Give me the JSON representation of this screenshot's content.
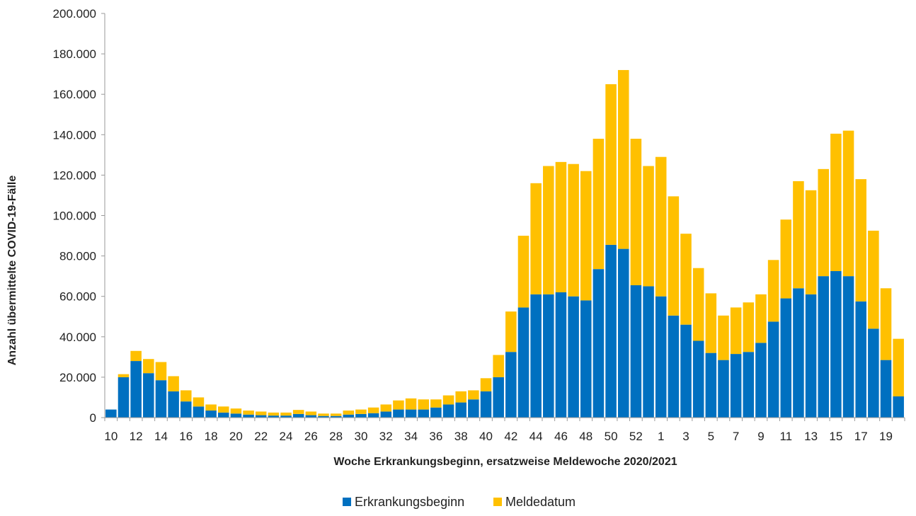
{
  "chart_data": {
    "type": "bar",
    "stacked": true,
    "xlabel": "Woche Erkrankungsbeginn, ersatzweise Meldewoche 2020/2021",
    "ylabel": "Anzahl übermittelte COVID-19-Fälle",
    "ylim": [
      0,
      200000
    ],
    "yticks": [
      "0",
      "20.000",
      "40.000",
      "60.000",
      "80.000",
      "100.000",
      "120.000",
      "140.000",
      "160.000",
      "180.000",
      "200.000"
    ],
    "categories": [
      "10",
      "11",
      "12",
      "13",
      "14",
      "15",
      "16",
      "17",
      "18",
      "19",
      "20",
      "21",
      "22",
      "23",
      "24",
      "25",
      "26",
      "27",
      "28",
      "29",
      "30",
      "31",
      "32",
      "33",
      "34",
      "35",
      "36",
      "37",
      "38",
      "39",
      "40",
      "41",
      "42",
      "43",
      "44",
      "45",
      "46",
      "47",
      "48",
      "49",
      "50",
      "51",
      "52",
      "53",
      "1",
      "2",
      "3",
      "4",
      "5",
      "6",
      "7",
      "8",
      "9",
      "10",
      "11",
      "12",
      "13",
      "14",
      "15",
      "16",
      "17",
      "18",
      "19",
      "20"
    ],
    "tick_labels": [
      "10",
      "12",
      "14",
      "16",
      "18",
      "20",
      "22",
      "24",
      "26",
      "28",
      "30",
      "32",
      "34",
      "36",
      "38",
      "40",
      "42",
      "44",
      "46",
      "48",
      "50",
      "52",
      "1",
      "3",
      "5",
      "7",
      "9",
      "11",
      "13",
      "15",
      "17",
      "19"
    ],
    "tick_indices": [
      0,
      2,
      4,
      6,
      8,
      10,
      12,
      14,
      16,
      18,
      20,
      22,
      24,
      26,
      28,
      30,
      32,
      34,
      36,
      38,
      40,
      42,
      44,
      46,
      48,
      50,
      52,
      54,
      56,
      58,
      60,
      62
    ],
    "series": [
      {
        "name": "Erkrankungsbeginn",
        "color": "#0070C0",
        "values": [
          4000,
          20000,
          28000,
          22000,
          18500,
          13000,
          8000,
          5500,
          3500,
          2500,
          2000,
          1500,
          1200,
          1000,
          1000,
          1800,
          1200,
          800,
          800,
          1500,
          1800,
          2200,
          3000,
          4000,
          4000,
          4000,
          5000,
          6500,
          7500,
          9000,
          13000,
          20000,
          32500,
          54500,
          61000,
          61000,
          62000,
          60000,
          58000,
          73500,
          85500,
          83500,
          65500,
          65000,
          60000,
          50500,
          46000,
          38000,
          32000,
          28500,
          31500,
          32500,
          37000,
          47500,
          59000,
          64000,
          61000,
          70000,
          72500,
          70000,
          57500,
          44000,
          28500,
          10500
        ]
      },
      {
        "name": "Meldedatum",
        "color": "#FFC000",
        "values": [
          0,
          1500,
          5000,
          7000,
          9000,
          7500,
          5500,
          4500,
          3000,
          3000,
          2500,
          2000,
          1800,
          1500,
          1500,
          2000,
          1800,
          1200,
          1200,
          2000,
          2200,
          2800,
          3500,
          4500,
          5500,
          5000,
          4000,
          4500,
          5500,
          4500,
          6500,
          11000,
          20000,
          35500,
          55000,
          63500,
          64500,
          65500,
          64000,
          64500,
          79500,
          88500,
          72500,
          59500,
          69000,
          59000,
          45000,
          36000,
          29500,
          22000,
          23000,
          24500,
          24000,
          30500,
          39000,
          53000,
          51500,
          53000,
          68000,
          72000,
          60500,
          48500,
          35500,
          28500
        ]
      }
    ],
    "legend": "bottom",
    "grid": false
  },
  "legend_items": [
    "Erkrankungsbeginn",
    "Meldedatum"
  ]
}
